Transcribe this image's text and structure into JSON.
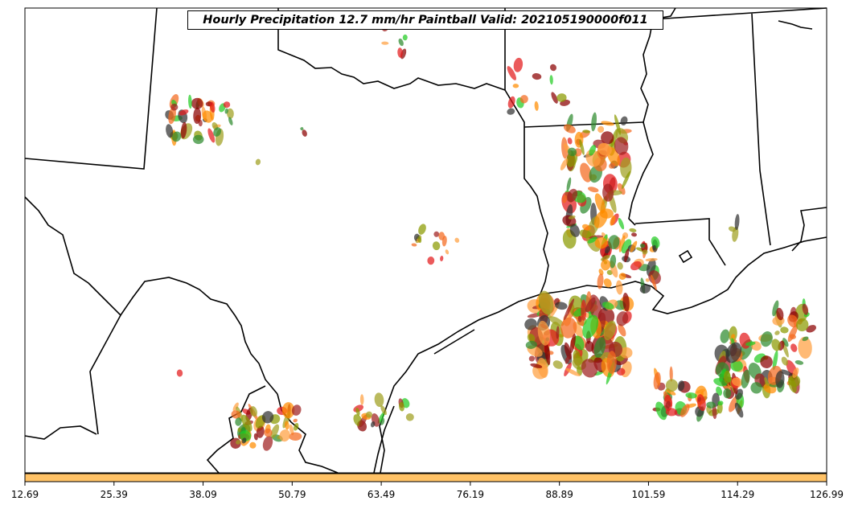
{
  "title": "Hourly Precipitation 12.7 mm/hr Paintball Valid: 202105190000f011",
  "colorbar": {
    "color": "#FFC266",
    "ticks": [
      "12.69",
      "25.39",
      "38.09",
      "50.79",
      "63.49",
      "76.19",
      "88.89",
      "101.59",
      "114.29",
      "126.99"
    ]
  },
  "member_colors": [
    "#E31A1C",
    "#F46A1F",
    "#FF8C00",
    "#FFA040",
    "#8B0000",
    "#A02020",
    "#22CC22",
    "#2E8B2E",
    "#8B9A00",
    "#A0A020",
    "#333333"
  ]
}
